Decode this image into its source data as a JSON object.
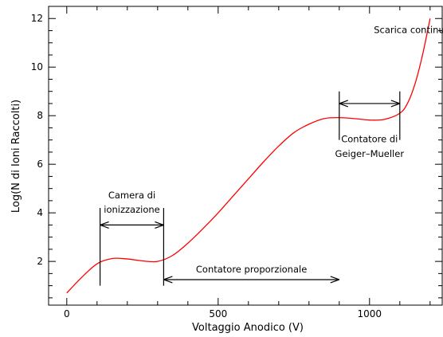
{
  "chart_data": {
    "type": "line",
    "xlabel": "Voltaggio Anodico (V)",
    "ylabel": "Log(N di Ioni Raccolti)",
    "xlim": [
      -60,
      1240
    ],
    "ylim": [
      0.2,
      12.5
    ],
    "xticks": [
      0,
      500,
      1000
    ],
    "yticks": [
      2,
      4,
      6,
      8,
      10,
      12
    ],
    "grid": false,
    "legend": "none",
    "series": [
      {
        "color": "#ff0000",
        "x": [
          0,
          50,
          100,
          150,
          200,
          250,
          300,
          350,
          400,
          450,
          500,
          550,
          600,
          650,
          700,
          750,
          800,
          850,
          900,
          950,
          1000,
          1050,
          1100,
          1125,
          1150,
          1175,
          1200
        ],
        "y": [
          0.7,
          1.35,
          1.9,
          2.12,
          2.1,
          2.02,
          2.0,
          2.25,
          2.75,
          3.35,
          4.0,
          4.7,
          5.4,
          6.1,
          6.75,
          7.3,
          7.65,
          7.88,
          7.92,
          7.88,
          7.82,
          7.85,
          8.1,
          8.5,
          9.3,
          10.5,
          12.0
        ]
      }
    ],
    "annotations": [
      {
        "id": "camera",
        "lines": [
          "Camera di",
          "ionizzazione"
        ],
        "x_from": 110,
        "x_to": 320,
        "arrow_y": 3.5,
        "bar_y": [
          1.0,
          4.2
        ],
        "label_y": [
          4.6,
          4.0
        ]
      },
      {
        "id": "proporzionale",
        "lines": [
          "Contatore proporzionale"
        ],
        "x_from": 320,
        "x_to": 900,
        "arrow_y": 1.25,
        "label_y": [
          1.55
        ]
      },
      {
        "id": "geiger",
        "lines": [
          "Contatore di",
          "Geiger–Mueller"
        ],
        "x_from": 900,
        "x_to": 1100,
        "arrow_y": 8.5,
        "bar_y": [
          7.0,
          9.0
        ],
        "label_y": [
          6.9,
          6.3
        ]
      },
      {
        "id": "scarica",
        "lines": [
          "Scarica continua"
        ],
        "x_text": 1140,
        "label_y": [
          11.4
        ]
      }
    ]
  }
}
